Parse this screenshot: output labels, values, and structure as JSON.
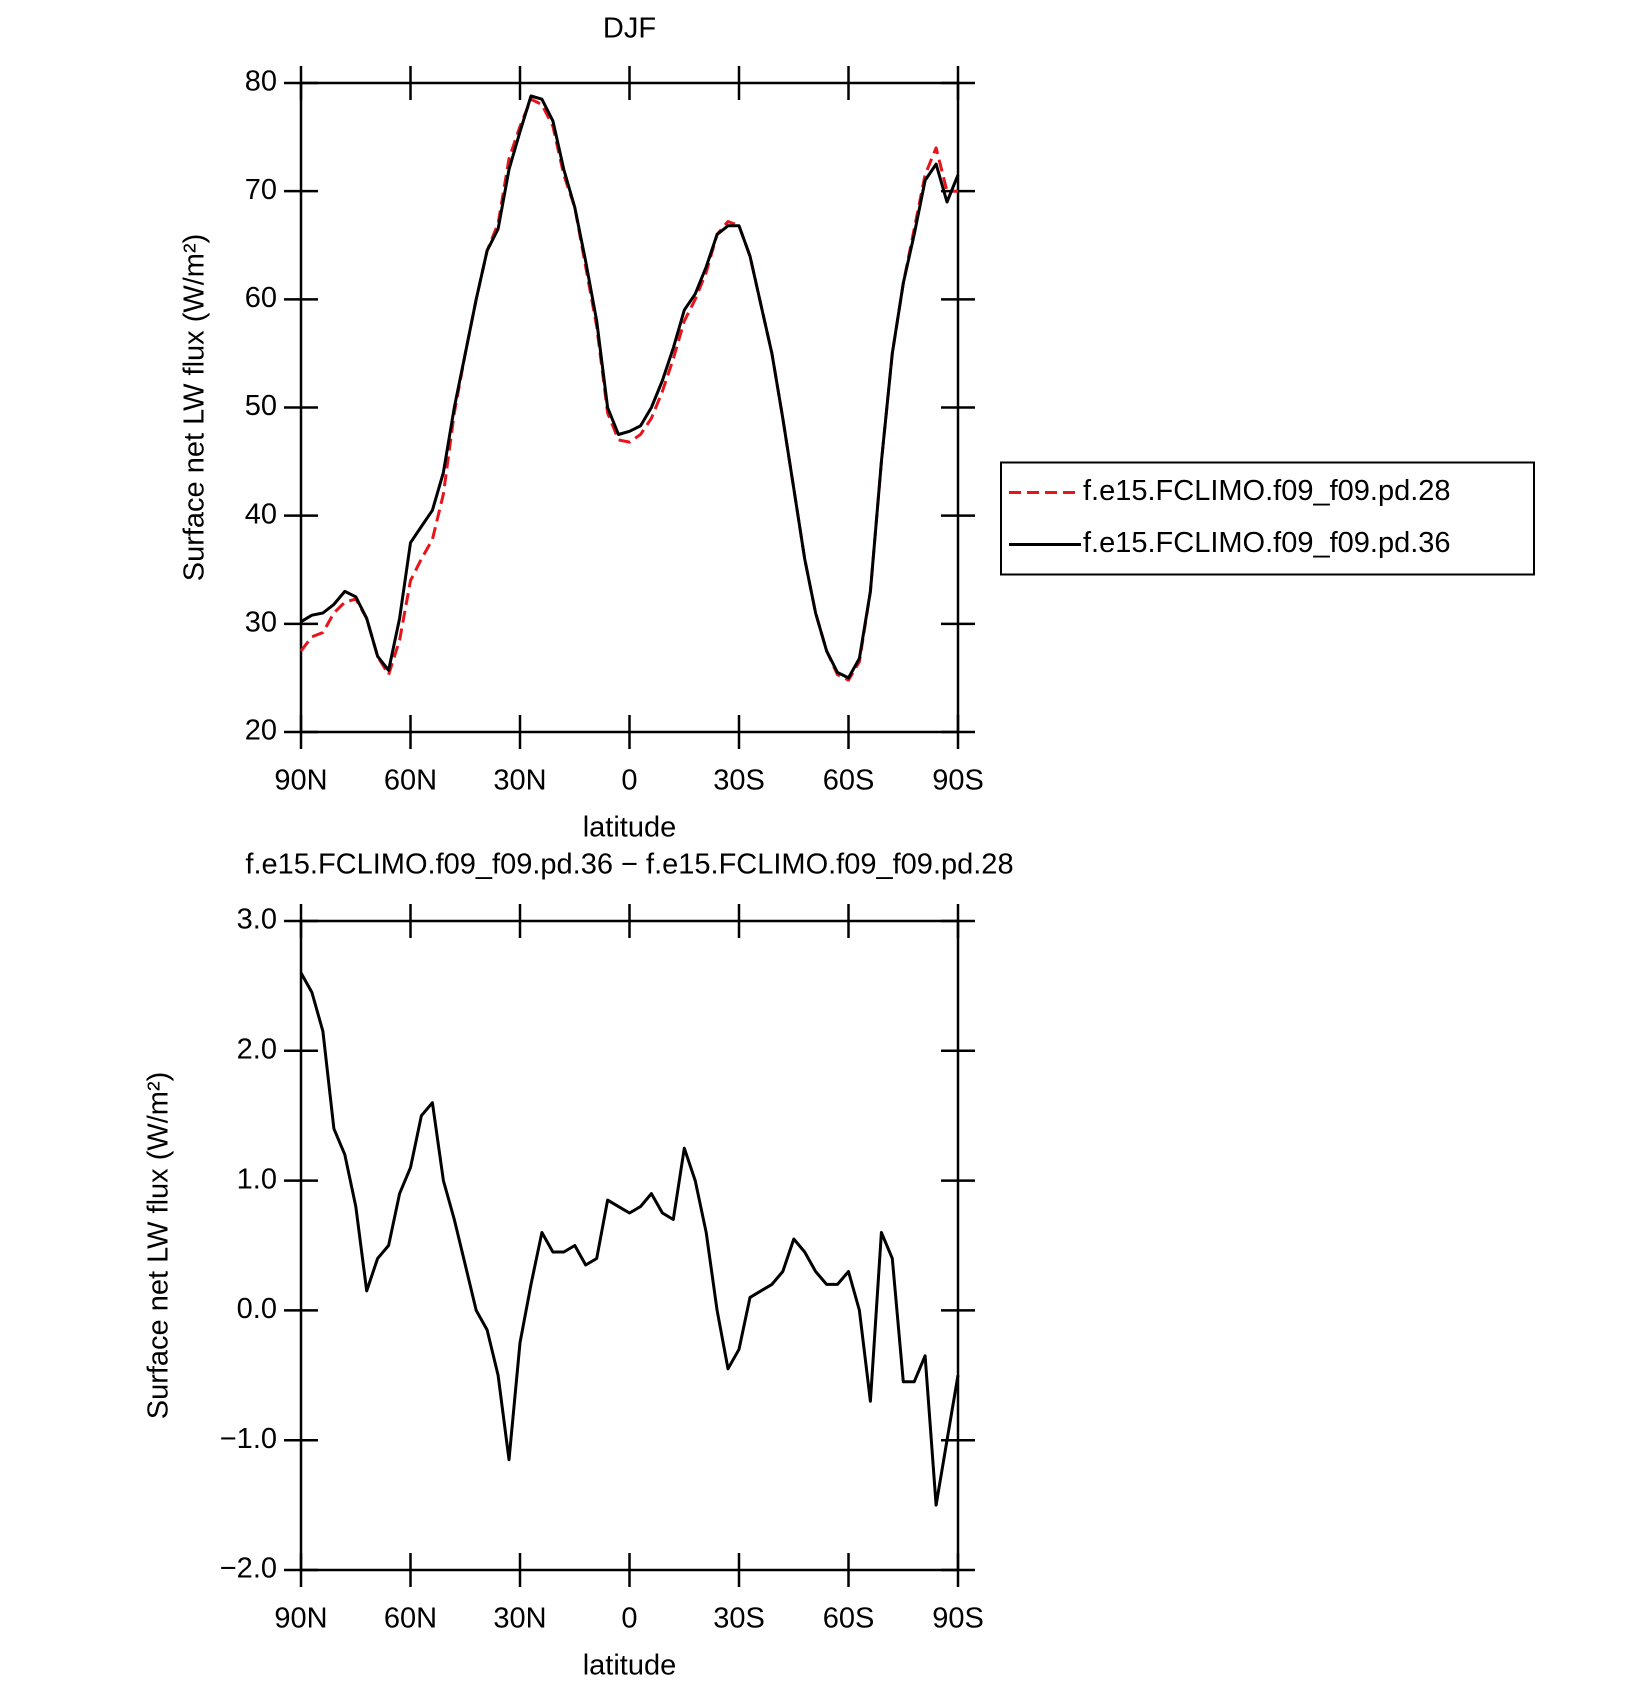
{
  "chart_data": [
    {
      "type": "line",
      "title": "DJF",
      "xlabel": "latitude",
      "ylabel": "Surface net LW flux (W/m²)",
      "x": [
        90,
        87,
        84,
        81,
        78,
        75,
        72,
        69,
        66,
        63,
        60,
        57,
        54,
        51,
        48,
        45,
        42,
        39,
        36,
        33,
        30,
        27,
        24,
        21,
        18,
        15,
        12,
        9,
        6,
        3,
        0,
        -3,
        -6,
        -9,
        -12,
        -15,
        -18,
        -21,
        -24,
        -27,
        -30,
        -33,
        -36,
        -39,
        -42,
        -45,
        -48,
        -51,
        -54,
        -57,
        -60,
        -63,
        -66,
        -69,
        -72,
        -75,
        -78,
        -81,
        -84,
        -87,
        -90
      ],
      "series": [
        {
          "name": "f.e15.FCLIMO.f09_f09.pd.28",
          "color": "#e8141c",
          "linestyle": "dashed",
          "values": [
            27.5,
            28.8,
            29.2,
            31.0,
            32.0,
            32.3,
            30.5,
            27.0,
            25.3,
            28.5,
            34.0,
            36.0,
            37.8,
            42.0,
            49.5,
            55.0,
            60.0,
            64.5,
            67.0,
            73.0,
            76.0,
            78.5,
            78.0,
            76.0,
            71.5,
            68.5,
            63.0,
            57.5,
            49.5,
            47.0,
            46.8,
            47.5,
            49.0,
            51.5,
            54.5,
            58.0,
            60.0,
            62.5,
            66.0,
            67.2,
            66.8,
            64.0,
            59.5,
            55.0,
            49.0,
            42.5,
            36.0,
            31.0,
            27.5,
            25.3,
            24.8,
            26.5,
            33.0,
            45.0,
            55.0,
            61.5,
            66.5,
            71.5,
            74.0,
            70.0,
            70.0
          ]
        },
        {
          "name": "f.e15.FCLIMO.f09_f09.pd.36",
          "color": "#000000",
          "linestyle": "solid",
          "values": [
            30.2,
            30.8,
            31.0,
            31.8,
            33.0,
            32.5,
            30.5,
            27.0,
            25.7,
            30.5,
            37.5,
            39.0,
            40.5,
            44.0,
            50.0,
            55.0,
            60.0,
            64.5,
            66.5,
            72.0,
            75.5,
            78.8,
            78.5,
            76.5,
            72.0,
            68.5,
            63.5,
            58.0,
            50.0,
            47.5,
            47.8,
            48.3,
            50.0,
            52.5,
            55.5,
            59.0,
            60.5,
            63.0,
            66.0,
            66.8,
            66.8,
            64.0,
            59.5,
            55.0,
            49.0,
            42.5,
            36.0,
            31.0,
            27.5,
            25.5,
            25.0,
            26.8,
            33.0,
            45.0,
            55.0,
            61.5,
            66.0,
            71.0,
            72.5,
            69.0,
            71.5
          ]
        }
      ],
      "xlim": [
        90,
        -90
      ],
      "xticks": [
        {
          "value": 90,
          "label": "90N"
        },
        {
          "value": 60,
          "label": "60N"
        },
        {
          "value": 30,
          "label": "30N"
        },
        0,
        {
          "value": -30,
          "label": "30S"
        },
        {
          "value": -60,
          "label": "60S"
        },
        {
          "value": -90,
          "label": "90S"
        }
      ],
      "ylim": [
        20,
        80
      ],
      "yticks": [
        20,
        30,
        40,
        50,
        60,
        70,
        80
      ],
      "legend": "right"
    },
    {
      "type": "line",
      "title": "f.e15.FCLIMO.f09_f09.pd.36 − f.e15.FCLIMO.f09_f09.pd.28",
      "xlabel": "latitude",
      "ylabel": "Surface net LW flux (W/m²)",
      "x": [
        90,
        87,
        84,
        81,
        78,
        75,
        72,
        69,
        66,
        63,
        60,
        57,
        54,
        51,
        48,
        45,
        42,
        39,
        36,
        33,
        30,
        27,
        24,
        21,
        18,
        15,
        12,
        9,
        6,
        3,
        0,
        -3,
        -6,
        -9,
        -12,
        -15,
        -18,
        -21,
        -24,
        -27,
        -30,
        -33,
        -36,
        -39,
        -42,
        -45,
        -48,
        -51,
        -54,
        -57,
        -60,
        -63,
        -66,
        -69,
        -72,
        -75,
        -78,
        -81,
        -84,
        -87,
        -90
      ],
      "series": [
        {
          "color": "#000000",
          "linestyle": "solid",
          "values": [
            2.6,
            2.45,
            2.15,
            1.4,
            1.2,
            0.8,
            0.15,
            0.4,
            0.5,
            0.9,
            1.1,
            1.5,
            1.6,
            1.0,
            0.7,
            0.35,
            0.0,
            -0.15,
            -0.5,
            -1.15,
            -0.25,
            0.2,
            0.6,
            0.45,
            0.45,
            0.5,
            0.35,
            0.4,
            0.85,
            0.8,
            0.75,
            0.8,
            0.9,
            0.75,
            0.7,
            1.25,
            1.0,
            0.6,
            0.0,
            -0.45,
            -0.3,
            0.1,
            0.15,
            0.2,
            0.3,
            0.55,
            0.45,
            0.3,
            0.2,
            0.2,
            0.3,
            0.0,
            -0.7,
            0.6,
            0.4,
            -0.55,
            -0.55,
            -0.35,
            -1.5,
            -1.0,
            -0.5
          ]
        }
      ],
      "xlim": [
        90,
        -90
      ],
      "xticks": [
        {
          "value": 90,
          "label": "90N"
        },
        {
          "value": 60,
          "label": "60N"
        },
        {
          "value": 30,
          "label": "30N"
        },
        0,
        {
          "value": -30,
          "label": "30S"
        },
        {
          "value": -60,
          "label": "60S"
        },
        {
          "value": -90,
          "label": "90S"
        }
      ],
      "ylim": [
        -2,
        3
      ],
      "yticks": [
        {
          "value": -2,
          "label": "−2.0"
        },
        {
          "value": -1,
          "label": "−1.0"
        },
        {
          "value": 0,
          "label": "0.0"
        },
        {
          "value": 1,
          "label": "1.0"
        },
        {
          "value": 2,
          "label": "2.0"
        },
        {
          "value": 3,
          "label": "3.0"
        }
      ]
    }
  ]
}
